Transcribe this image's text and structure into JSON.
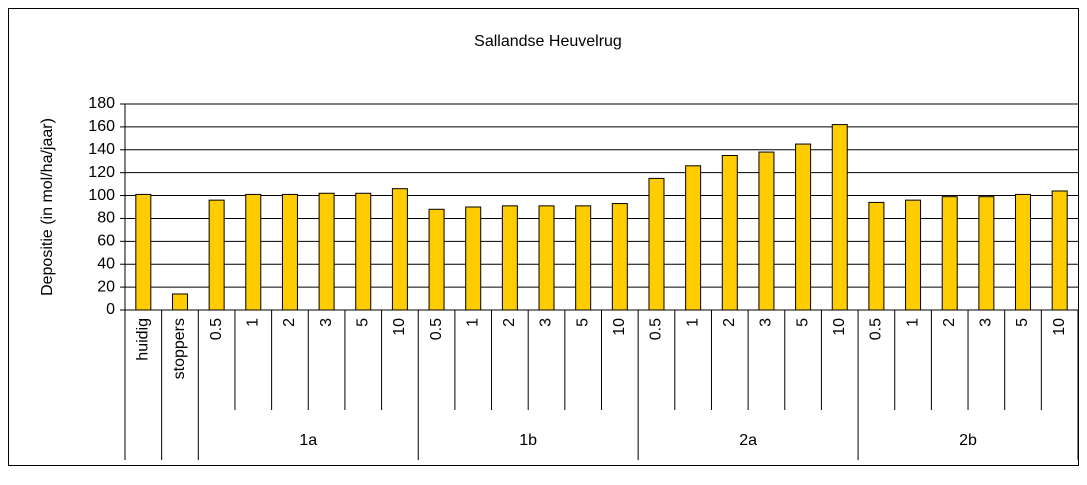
{
  "chart_data": {
    "type": "bar",
    "title": "Sallandse Heuvelrug",
    "y_label": "Depositie (in mol/ha/jaar)",
    "color": "#ffcc00",
    "ylim": [
      0,
      180
    ],
    "yticks": [
      0,
      20,
      40,
      60,
      80,
      100,
      120,
      140,
      160,
      180
    ],
    "grid": true,
    "groups": [
      {
        "name": null,
        "categories": [
          "huidig"
        ],
        "values": [
          101
        ]
      },
      {
        "name": null,
        "categories": [
          "stoppers"
        ],
        "values": [
          14
        ]
      },
      {
        "name": "1a",
        "categories": [
          "0.5",
          "1",
          "2",
          "3",
          "5",
          "10"
        ],
        "values": [
          96,
          101,
          101,
          102,
          102,
          106
        ]
      },
      {
        "name": "1b",
        "categories": [
          "0.5",
          "1",
          "2",
          "3",
          "5",
          "10"
        ],
        "values": [
          88,
          90,
          91,
          91,
          91,
          93
        ]
      },
      {
        "name": "2a",
        "categories": [
          "0.5",
          "1",
          "2",
          "3",
          "5",
          "10"
        ],
        "values": [
          115,
          126,
          135,
          138,
          145,
          162
        ]
      },
      {
        "name": "2b",
        "categories": [
          "0.5",
          "1",
          "2",
          "3",
          "5",
          "10"
        ],
        "values": [
          94,
          96,
          99,
          99,
          101,
          104
        ]
      }
    ]
  }
}
